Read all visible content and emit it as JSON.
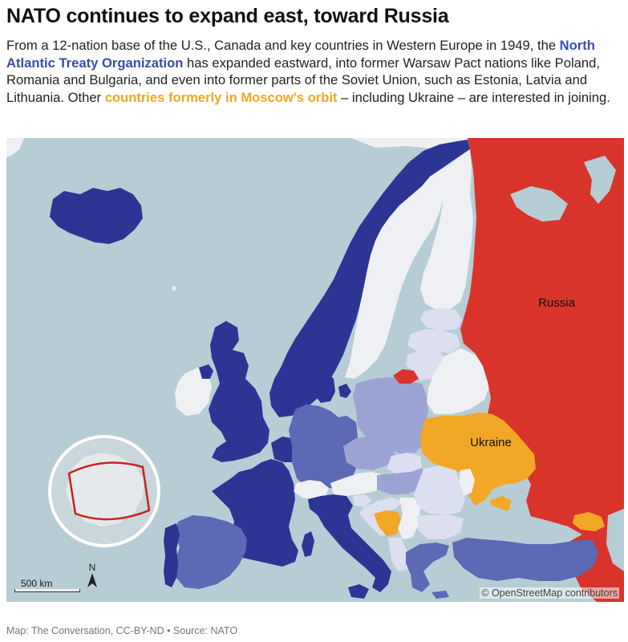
{
  "header": {
    "title": "NATO continues to expand east, toward Russia",
    "intro_part1": "From a 12-nation base of the U.S., Canada and key countries in Western Europe in 1949, the ",
    "intro_nato": "North Atlantic Treaty Organization",
    "intro_part2": " has expanded eastward, into former Warsaw Pact nations like Poland, Romania and Bulgaria, and even into former parts of the Soviet Union, such as Estonia, Latvia and Lithuania. Other ",
    "intro_orbit": "countries formerly in Moscow's orbit",
    "intro_part3": " – including Ukraine – are interested in joining."
  },
  "map": {
    "labels": {
      "russia": "Russia",
      "ukraine": "Ukraine"
    },
    "scale_bar": "500 km",
    "north": "N",
    "attribution": "© OpenStreetMap contributors",
    "colors": {
      "water": "#b7cdd5",
      "non_nato_land": "#eef0f3",
      "nato_1949": "#2c3594",
      "nato_1950s_80s": "#5c69b5",
      "nato_1999": "#9ca4d4",
      "nato_2004_later": "#dcdff0",
      "aspiring": "#f3a726",
      "russia": "#d9342b"
    }
  },
  "footer": {
    "credit": "Map: The Conversation, CC-BY-ND • Source: NATO"
  }
}
